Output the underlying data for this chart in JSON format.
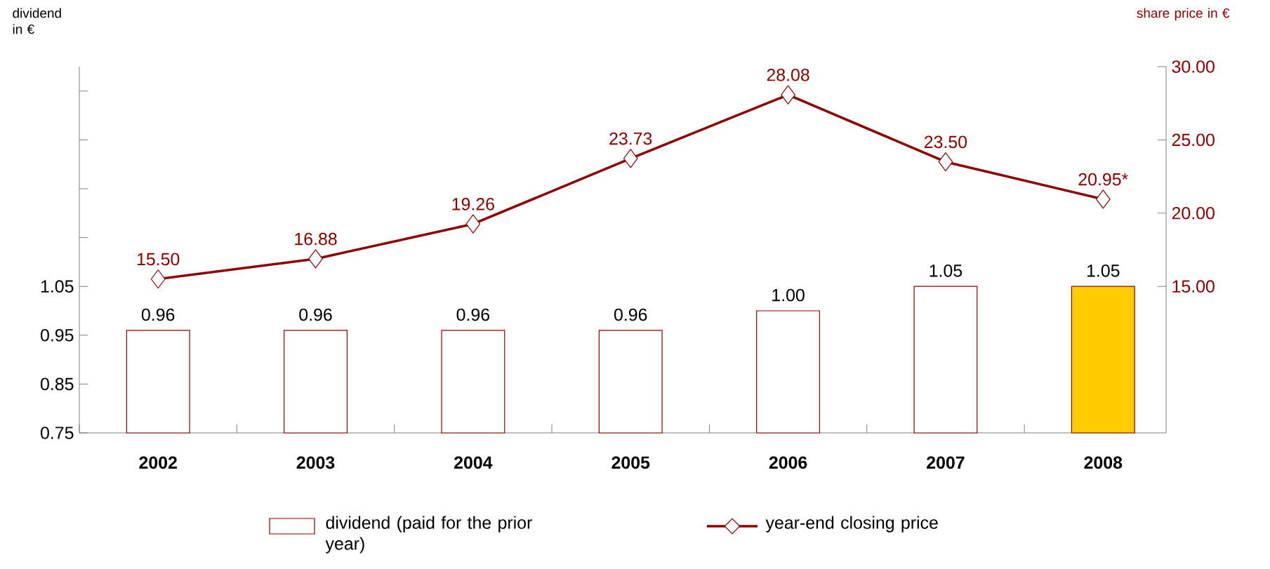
{
  "chart_data": {
    "type": "bar",
    "ylabel": "dividend in €",
    "y2label": "share price in €",
    "categories": [
      "2002",
      "2003",
      "2004",
      "2005",
      "2006",
      "2007",
      "2008"
    ],
    "series": [
      {
        "name": "dividend (paid for the prior year)",
        "color": "#8b0000",
        "colors": [
          "#ffffff",
          "#ffffff",
          "#ffffff",
          "#ffffff",
          "#ffffff",
          "#ffffff",
          "#ffcc00"
        ],
        "values": [
          0.96,
          0.96,
          0.96,
          0.96,
          1.0,
          1.05,
          1.05
        ],
        "value_labels": [
          "0.96",
          "0.96",
          "0.96",
          "0.96",
          "1.00",
          "1.05",
          "1.05"
        ]
      },
      {
        "name": "year-end closing price",
        "type": "line",
        "axis": "y2",
        "color": "#8b0000",
        "marker": "diamond",
        "line_style": "solid",
        "values": [
          15.5,
          16.88,
          19.26,
          23.73,
          28.08,
          23.5,
          20.95
        ],
        "value_labels": [
          "15.50",
          "16.88",
          "19.26",
          "23.73",
          "28.08",
          "23.50",
          "20.95*"
        ]
      }
    ],
    "ylim": [
      0.75,
      1.5
    ],
    "yticks": [
      0.75,
      0.85,
      0.95,
      1.05,
      {
        "value": 1.15,
        "label": null
      },
      {
        "value": 1.25,
        "label": null
      },
      {
        "value": 1.35,
        "label": null
      },
      {
        "value": 1.45,
        "label": null
      }
    ],
    "y2lim": [
      5,
      30
    ],
    "y2ticks": [
      {
        "value": 15,
        "label": "15.00"
      },
      {
        "value": 20,
        "label": "20.00"
      },
      {
        "value": 25,
        "label": "25.00"
      },
      {
        "value": 30,
        "label": "30.00"
      }
    ],
    "legend": "bottom"
  }
}
